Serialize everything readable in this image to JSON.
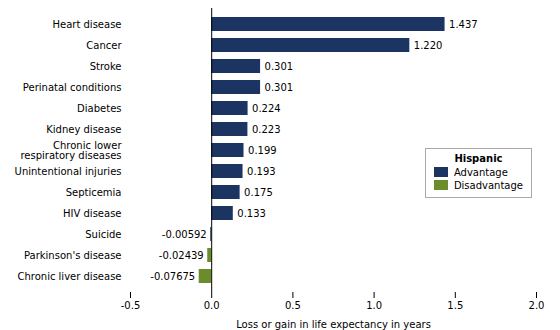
{
  "chart_data": {
    "type": "bar",
    "orientation": "horizontal",
    "categories": [
      "Heart disease",
      "Cancer",
      "Stroke",
      "Perinatal conditions",
      "Diabetes",
      "Kidney disease",
      "Chronic lower\nrespiratory diseases",
      "Unintentional injuries",
      "Septicemia",
      "HIV disease",
      "Suicide",
      "Parkinson's disease",
      "Chronic liver disease"
    ],
    "values": [
      1.437,
      1.22,
      0.301,
      0.301,
      0.224,
      0.223,
      0.199,
      0.193,
      0.175,
      0.133,
      -0.00592,
      -0.02439,
      -0.07675
    ],
    "value_labels": [
      "1.437",
      "1.220",
      "0.301",
      "0.301",
      "0.224",
      "0.223",
      "0.199",
      "0.193",
      "0.175",
      "0.133",
      "-0.00592",
      "-0.02439",
      "-0.07675"
    ],
    "data_labels": true,
    "colors": [
      "#1c3461",
      "#1c3461",
      "#1c3461",
      "#1c3461",
      "#1c3461",
      "#1c3461",
      "#1c3461",
      "#1c3461",
      "#1c3461",
      "#1c3461",
      "#1c3461",
      "#6b8c2a",
      "#6b8c2a"
    ],
    "xlabel": "Loss or gain in life expectancy in years",
    "xlim": [
      -0.5,
      2.0
    ],
    "xticks": [
      -0.5,
      {
        "value": 0.0,
        "label": "0.0"
      },
      0.5,
      {
        "value": 1.0,
        "label": "1.0"
      },
      1.5,
      {
        "value": 2.0,
        "label": "2.0"
      }
    ],
    "grid": false,
    "legend": "right",
    "legend_title": "Hispanic",
    "legend_entries": [
      {
        "name": "Advantage",
        "color": "#1c3461"
      },
      {
        "name": "Disadvantage",
        "color": "#6b8c2a"
      }
    ]
  }
}
